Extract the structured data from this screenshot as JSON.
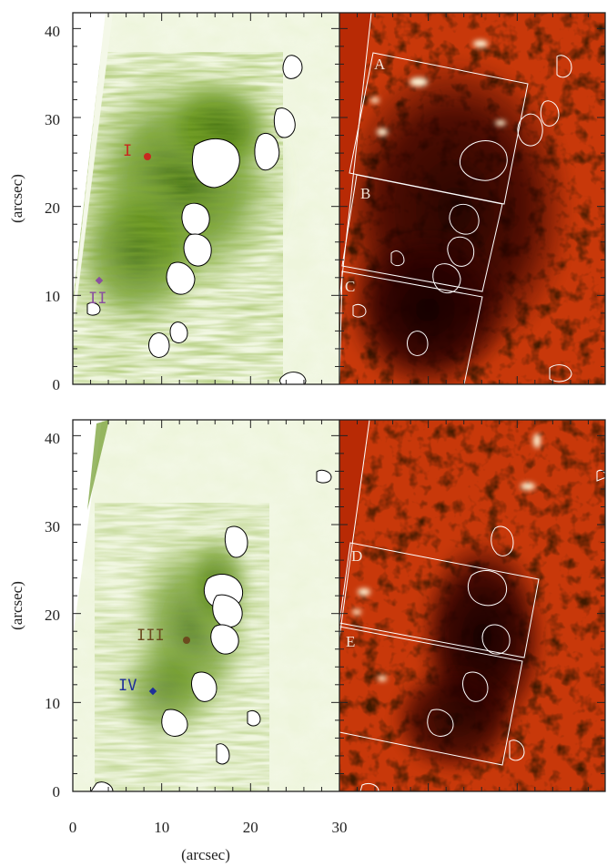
{
  "figure": {
    "x_axis": {
      "label": "(arcsec)",
      "ticks": [
        "0",
        "10",
        "20",
        "30"
      ]
    },
    "y_axis_label": "(arcsec)",
    "y_ticks": [
      "0",
      "10",
      "20",
      "30",
      "40"
    ],
    "colors": {
      "green_dark": "#3d6b06",
      "green_light": "#eef5dc",
      "red_bright": "#d83a0c",
      "red_dark": "#140300",
      "highlight": "#fff5d6",
      "contour_green": "#000000",
      "contour_red": "#ffffff"
    },
    "top_row": {
      "left_panel": {
        "name": "intensity-map-top",
        "points": [
          {
            "label": "I",
            "color": "#c8281f",
            "marker": "circle"
          },
          {
            "label": "II",
            "color": "#8a4fa0",
            "marker": "diamond"
          }
        ]
      },
      "right_panel": {
        "name": "velocity-map-top",
        "regions": [
          {
            "label": "A"
          },
          {
            "label": "B"
          },
          {
            "label": "C"
          }
        ]
      }
    },
    "bottom_row": {
      "left_panel": {
        "name": "intensity-map-bottom",
        "points": [
          {
            "label": "III",
            "color": "#6b4a1e",
            "marker": "circle"
          },
          {
            "label": "IV",
            "color": "#1f2f9a",
            "marker": "diamond"
          }
        ]
      },
      "right_panel": {
        "name": "velocity-map-bottom",
        "regions": [
          {
            "label": "D"
          },
          {
            "label": "E"
          }
        ]
      }
    }
  }
}
